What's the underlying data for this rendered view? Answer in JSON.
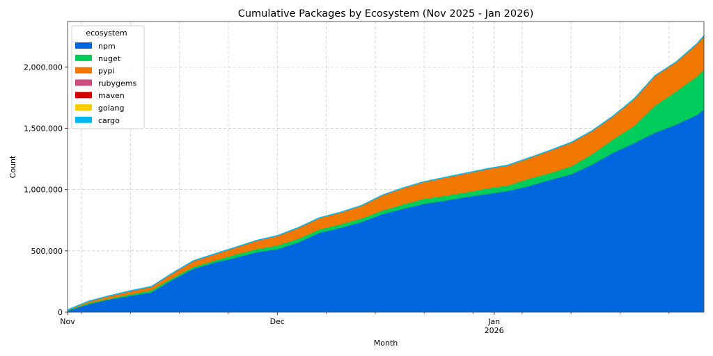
{
  "chart_data": {
    "type": "area",
    "stacked": true,
    "title": "Cumulative Packages by Ecosystem (Nov 2025 - Jan 2026)",
    "xlabel": "Month",
    "ylabel": "Count",
    "x_start_date": "2025-11-01",
    "x_end_date": "2026-01-31",
    "x_ticks_major": [
      {
        "day": 0,
        "label": "Nov"
      },
      {
        "day": 30,
        "label": "Dec"
      },
      {
        "day": 61,
        "label": "Jan\n2026"
      }
    ],
    "x_ticks_minor_days": [
      2,
      9,
      16,
      23,
      37,
      44,
      51,
      58,
      65,
      72,
      79,
      86
    ],
    "ylim": [
      0,
      2370000
    ],
    "y_ticks": [
      {
        "value": 0,
        "label": "0"
      },
      {
        "value": 500000,
        "label": "500,000"
      },
      {
        "value": 1000000,
        "label": "1,000,000"
      },
      {
        "value": 1500000,
        "label": "1,500,000"
      },
      {
        "value": 2000000,
        "label": "2,000,000"
      }
    ],
    "grid": true,
    "legend": {
      "title": "ecosystem",
      "placement": "top-left"
    },
    "x_days": [
      0,
      3,
      6,
      9,
      12,
      15,
      18,
      21,
      24,
      27,
      30,
      33,
      36,
      39,
      42,
      45,
      48,
      51,
      54,
      57,
      60,
      63,
      66,
      69,
      72,
      75,
      78,
      81,
      84,
      87,
      90,
      91
    ],
    "series": [
      {
        "name": "npm",
        "color": "#0066dd",
        "values": [
          12000,
          65000,
          105000,
          135000,
          163000,
          265000,
          355000,
          405000,
          445000,
          490000,
          515000,
          570000,
          648000,
          688000,
          735000,
          800000,
          845000,
          885000,
          910000,
          940000,
          965000,
          990000,
          1030000,
          1080000,
          1125000,
          1205000,
          1300000,
          1380000,
          1465000,
          1530000,
          1610000,
          1655000
        ]
      },
      {
        "name": "nuget",
        "color": "#00cc5c",
        "values": [
          4000,
          9000,
          7000,
          12000,
          17000,
          15000,
          15000,
          15000,
          27000,
          25000,
          30000,
          30000,
          28000,
          29000,
          30000,
          30000,
          35000,
          40000,
          40000,
          38000,
          45000,
          45000,
          60000,
          55000,
          65000,
          85000,
          110000,
          140000,
          220000,
          270000,
          315000,
          325000
        ]
      },
      {
        "name": "pypi",
        "color": "#f07800",
        "values": [
          2000,
          14000,
          20000,
          25000,
          27000,
          37000,
          47000,
          52000,
          55000,
          67000,
          77000,
          87000,
          91000,
          95000,
          102000,
          122000,
          132000,
          137000,
          147000,
          154000,
          157000,
          162000,
          167000,
          182000,
          192000,
          187000,
          187000,
          217000,
          242000,
          237000,
          262000,
          272000
        ]
      },
      {
        "name": "rubygems",
        "color": "#cc4c80",
        "values": [
          500,
          500,
          1000,
          1000,
          1000,
          1000,
          1000,
          1000,
          1000,
          1000,
          1000,
          1000,
          1000,
          1000,
          1000,
          1000,
          1000,
          1000,
          1000,
          1000,
          1000,
          1000,
          1000,
          1000,
          1000,
          1000,
          1000,
          1000,
          1000,
          1000,
          1000,
          1000
        ]
      },
      {
        "name": "maven",
        "color": "#d40000",
        "values": [
          200,
          200,
          300,
          300,
          300,
          300,
          300,
          300,
          300,
          300,
          300,
          300,
          300,
          300,
          300,
          300,
          300,
          300,
          300,
          300,
          300,
          300,
          300,
          300,
          300,
          300,
          300,
          300,
          300,
          300,
          300,
          300
        ]
      },
      {
        "name": "golang",
        "color": "#ffcc00",
        "values": [
          200,
          200,
          300,
          300,
          300,
          300,
          300,
          300,
          300,
          300,
          300,
          300,
          300,
          300,
          300,
          300,
          300,
          300,
          300,
          300,
          300,
          300,
          300,
          300,
          300,
          300,
          300,
          300,
          300,
          300,
          300,
          300
        ]
      },
      {
        "name": "cargo",
        "color": "#00b8f0",
        "values": [
          1100,
          1300,
          2000,
          2000,
          2000,
          2000,
          2000,
          2000,
          2000,
          2000,
          2000,
          2000,
          2000,
          2000,
          2000,
          2000,
          2000,
          2000,
          2000,
          2000,
          2000,
          2000,
          2000,
          2000,
          2000,
          2000,
          2000,
          2000,
          2000,
          2000,
          2000,
          2000
        ]
      }
    ]
  }
}
